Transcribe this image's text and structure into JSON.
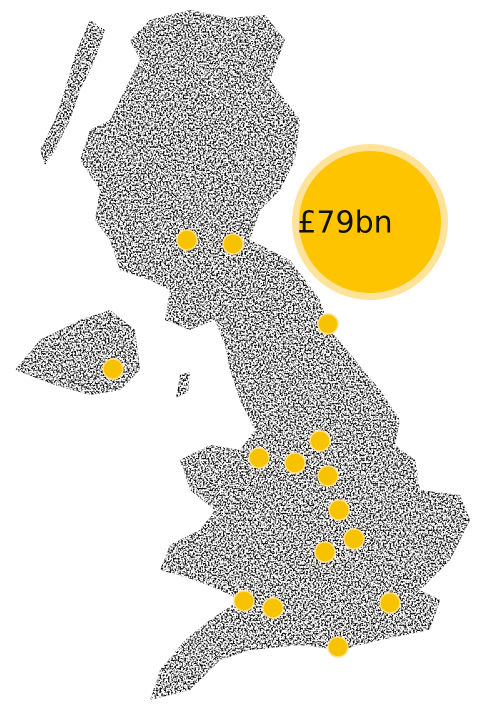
{
  "callout": {
    "label": "£79bn"
  }
}
